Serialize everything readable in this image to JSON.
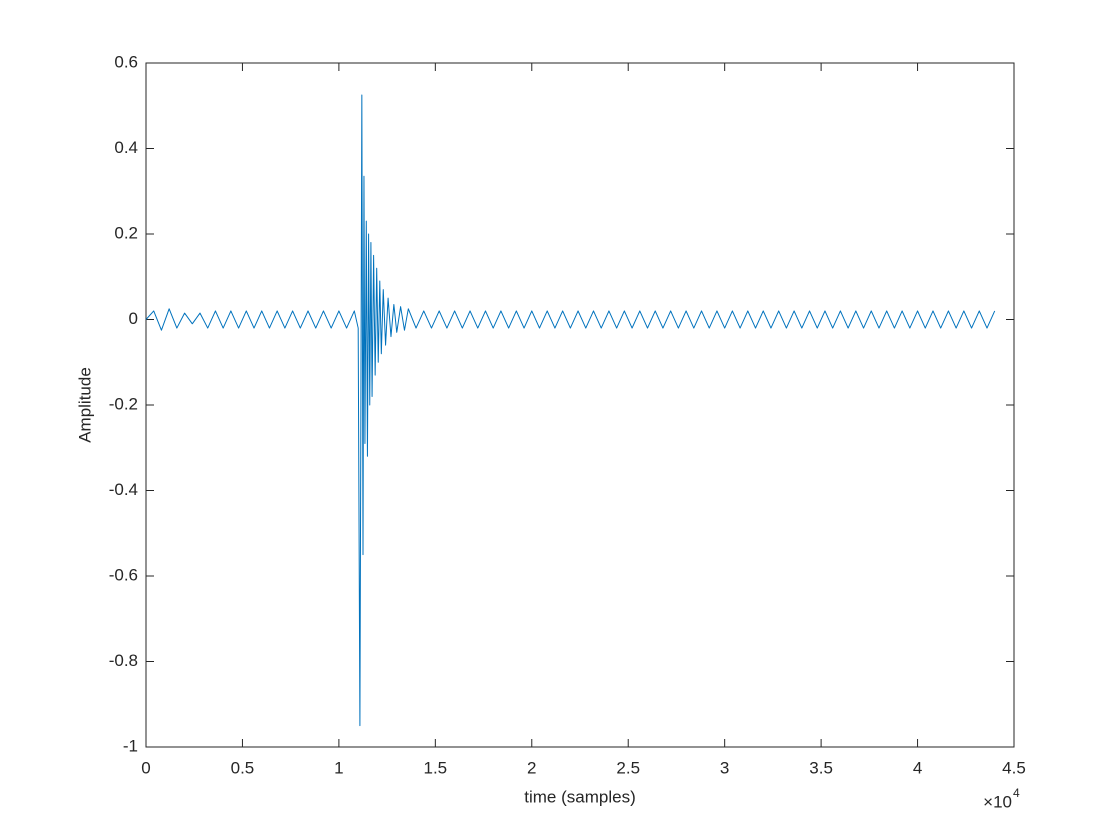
{
  "chart_data": {
    "type": "line",
    "xlabel": "time (samples)",
    "ylabel": "Amplitude",
    "x_exponent_base": "×10",
    "x_exponent": "4",
    "xlim": [
      0,
      45000
    ],
    "xticks": [
      0,
      {
        "value": 5000,
        "label": "0.5"
      },
      {
        "value": 10000,
        "label": "1"
      },
      {
        "value": 15000,
        "label": "1.5"
      },
      {
        "value": 20000,
        "label": "2"
      },
      {
        "value": 25000,
        "label": "2.5"
      },
      {
        "value": 30000,
        "label": "3"
      },
      {
        "value": 35000,
        "label": "3.5"
      },
      {
        "value": 40000,
        "label": "4"
      },
      {
        "value": 45000,
        "label": "4.5"
      }
    ],
    "ylim": [
      -1,
      0.6
    ],
    "yticks": [
      -1,
      -0.8,
      -0.6,
      -0.4,
      -0.2,
      0,
      0.2,
      0.4,
      0.6
    ],
    "x": [
      0,
      400,
      800,
      1200,
      1600,
      2000,
      2400,
      2800,
      3200,
      3600,
      4000,
      4400,
      4800,
      5200,
      5600,
      6000,
      6400,
      6800,
      7200,
      7600,
      8000,
      8400,
      8800,
      9200,
      9600,
      10000,
      10400,
      10800,
      11000,
      11090,
      11190,
      11250,
      11300,
      11350,
      11420,
      11480,
      11540,
      11600,
      11660,
      11720,
      11800,
      11880,
      11960,
      12040,
      12120,
      12200,
      12300,
      12420,
      12550,
      12700,
      12850,
      13000,
      13200,
      13400,
      13600,
      14000,
      14400,
      14800,
      15200,
      15600,
      16000,
      16400,
      16800,
      17200,
      17600,
      18000,
      18400,
      18800,
      19200,
      19600,
      20000,
      20400,
      20800,
      21200,
      21600,
      22000,
      22400,
      22800,
      23200,
      23600,
      24000,
      24400,
      24800,
      25200,
      25600,
      26000,
      26400,
      26800,
      27200,
      27600,
      28000,
      28400,
      28800,
      29200,
      29600,
      30000,
      30400,
      30800,
      31200,
      31600,
      32000,
      32400,
      32800,
      33200,
      33600,
      34000,
      34400,
      34800,
      35200,
      35600,
      36000,
      36400,
      36800,
      37200,
      37600,
      38000,
      38400,
      38800,
      39200,
      39600,
      40000,
      40400,
      40800,
      41200,
      41600,
      42000,
      42400,
      42800,
      43200,
      43600,
      44000
    ],
    "series": [
      {
        "color": "#0072bd",
        "values": [
          0,
          0.02,
          -0.025,
          0.025,
          -0.02,
          0.015,
          -0.01,
          0.015,
          -0.02,
          0.02,
          -0.02,
          0.02,
          -0.02,
          0.02,
          -0.02,
          0.02,
          -0.02,
          0.02,
          -0.02,
          0.02,
          -0.02,
          0.02,
          -0.02,
          0.02,
          -0.02,
          0.02,
          -0.02,
          0.02,
          -0.02,
          -0.95,
          0.525,
          -0.55,
          0.335,
          -0.29,
          0.23,
          -0.32,
          0.2,
          -0.2,
          0.18,
          -0.18,
          0.15,
          -0.13,
          0.12,
          -0.1,
          0.09,
          -0.08,
          0.07,
          -0.06,
          0.05,
          -0.04,
          0.035,
          -0.03,
          0.03,
          -0.025,
          0.025,
          -0.02,
          0.02,
          -0.02,
          0.02,
          -0.02,
          0.02,
          -0.02,
          0.02,
          -0.02,
          0.02,
          -0.02,
          0.02,
          -0.02,
          0.02,
          -0.02,
          0.02,
          -0.02,
          0.02,
          -0.02,
          0.02,
          -0.02,
          0.02,
          -0.02,
          0.02,
          -0.02,
          0.02,
          -0.02,
          0.02,
          -0.02,
          0.02,
          -0.02,
          0.02,
          -0.02,
          0.02,
          -0.02,
          0.02,
          -0.02,
          0.02,
          -0.02,
          0.02,
          -0.02,
          0.02,
          -0.02,
          0.02,
          -0.02,
          0.02,
          -0.02,
          0.02,
          -0.02,
          0.02,
          -0.02,
          0.02,
          -0.02,
          0.02,
          -0.02,
          0.02,
          -0.02,
          0.02,
          -0.02,
          0.02,
          -0.02,
          0.02,
          -0.02,
          0.02,
          -0.02,
          0.02,
          -0.02,
          0.02,
          -0.02,
          0.02,
          -0.02,
          0.02,
          -0.02,
          0.02,
          -0.02,
          0.02
        ]
      }
    ]
  }
}
